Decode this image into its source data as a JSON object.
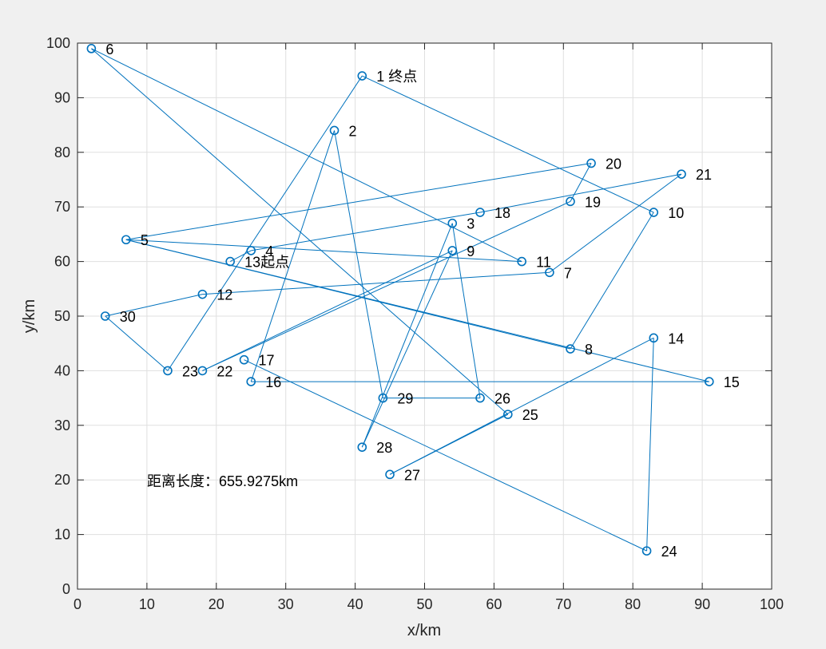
{
  "chart_data": {
    "type": "scatter",
    "title": "",
    "xlabel": "x/km",
    "ylabel": "y/km",
    "xlim": [
      0,
      100
    ],
    "ylim": [
      0,
      100
    ],
    "xticks": [
      0,
      10,
      20,
      30,
      40,
      50,
      60,
      70,
      80,
      90,
      100
    ],
    "yticks": [
      0,
      10,
      20,
      30,
      40,
      50,
      60,
      70,
      80,
      90,
      100
    ],
    "grid": true,
    "line_color": "#0072bd",
    "points": [
      {
        "label": "1  终点",
        "x": 41,
        "y": 94
      },
      {
        "label": "2",
        "x": 37,
        "y": 84
      },
      {
        "label": "3",
        "x": 54,
        "y": 67
      },
      {
        "label": "4",
        "x": 25,
        "y": 62
      },
      {
        "label": "5",
        "x": 7,
        "y": 64
      },
      {
        "label": "6",
        "x": 2,
        "y": 99
      },
      {
        "label": "7",
        "x": 68,
        "y": 58
      },
      {
        "label": "8",
        "x": 71,
        "y": 44
      },
      {
        "label": "9",
        "x": 54,
        "y": 62
      },
      {
        "label": "10",
        "x": 83,
        "y": 69
      },
      {
        "label": "11",
        "x": 64,
        "y": 60
      },
      {
        "label": "12",
        "x": 18,
        "y": 54
      },
      {
        "label": "13起点",
        "x": 22,
        "y": 60
      },
      {
        "label": "14",
        "x": 83,
        "y": 46
      },
      {
        "label": "15",
        "x": 91,
        "y": 38
      },
      {
        "label": "16",
        "x": 25,
        "y": 38
      },
      {
        "label": "17",
        "x": 24,
        "y": 42
      },
      {
        "label": "18",
        "x": 58,
        "y": 69
      },
      {
        "label": "19",
        "x": 71,
        "y": 71
      },
      {
        "label": "20",
        "x": 74,
        "y": 78
      },
      {
        "label": "21",
        "x": 87,
        "y": 76
      },
      {
        "label": "22",
        "x": 18,
        "y": 40
      },
      {
        "label": "23",
        "x": 13,
        "y": 40
      },
      {
        "label": "24",
        "x": 82,
        "y": 7
      },
      {
        "label": "25",
        "x": 62,
        "y": 32
      },
      {
        "label": "26",
        "x": 58,
        "y": 35
      },
      {
        "label": "27",
        "x": 45,
        "y": 21
      },
      {
        "label": "28",
        "x": 41,
        "y": 26
      },
      {
        "label": "29",
        "x": 44,
        "y": 35
      },
      {
        "label": "30",
        "x": 4,
        "y": 50
      }
    ],
    "route": [
      13,
      4,
      18,
      21,
      7,
      12,
      30,
      23,
      1,
      10,
      8,
      5,
      20,
      19,
      22,
      9,
      28,
      3,
      26,
      29,
      2,
      16,
      15,
      5,
      11,
      6,
      25,
      27,
      14,
      24,
      17
    ],
    "annotation": "距离长度：655.9275km"
  }
}
